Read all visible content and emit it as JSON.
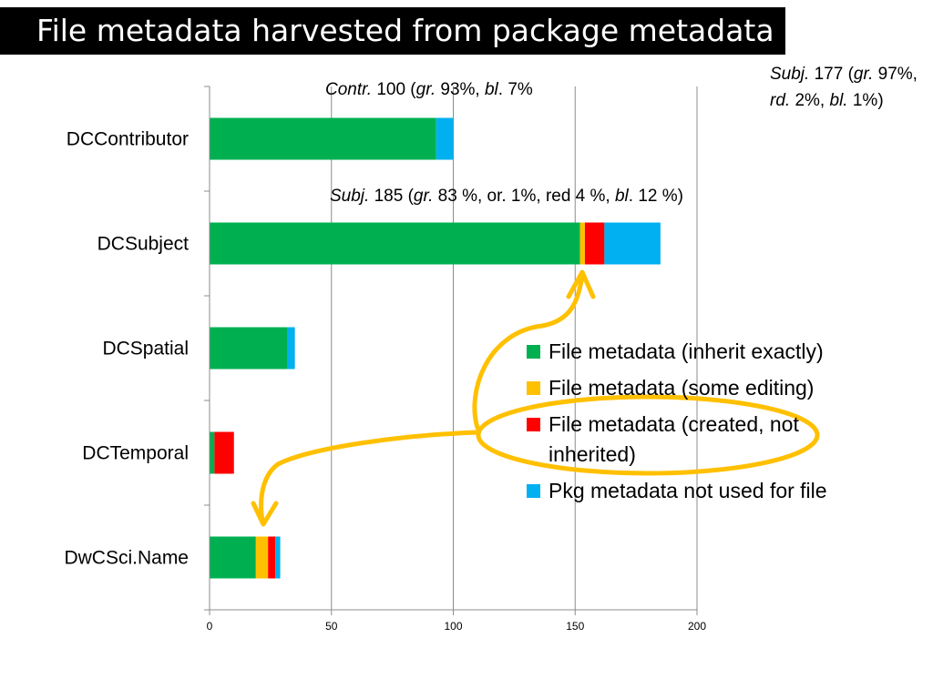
{
  "title": "File metadata harvested from package metadata",
  "chart_data": {
    "type": "bar",
    "orientation": "horizontal",
    "stacked": true,
    "categories": [
      "DCContributor",
      "DCSubject",
      "DCSpatial",
      "DCTemporal",
      "DwCSci.Name"
    ],
    "series": [
      {
        "name": "File metadata (inherit exactly)",
        "color": "#00b050",
        "values": [
          93,
          152,
          32,
          2,
          19
        ]
      },
      {
        "name": "File metadata (some editing)",
        "color": "#ffc000",
        "values": [
          0,
          2,
          0,
          0,
          5
        ]
      },
      {
        "name": "File metadata (created, not inherited)",
        "color": "#ff0000",
        "values": [
          0,
          8,
          0,
          8,
          3
        ]
      },
      {
        "name": "Pkg metadata not used for file",
        "color": "#00b0f0",
        "values": [
          7,
          23,
          3,
          0,
          2
        ]
      }
    ],
    "xlim": [
      0,
      200
    ],
    "xticks": [
      0,
      50,
      100,
      150,
      200
    ],
    "grid": "vertical",
    "legend_position": "right"
  },
  "annotations": {
    "contr": {
      "label": "Contr.",
      "t1": " 100 (",
      "gr": "gr.",
      "t2": " 93%, ",
      "bl": "bl",
      "t3": ". 7%"
    },
    "subj185": {
      "label": "Subj.",
      "t1": " 185 (",
      "gr": "gr.",
      "t2": " 83  %, or. 1%, red  4 %, ",
      "bl": "bl",
      "t3": ". 12 %)"
    },
    "subj177": {
      "label": "Subj.",
      "t1": " 177 (",
      "gr": "gr.",
      "t2": " 97%, ",
      "rd": "rd.",
      "t3": " 2%, ",
      "bl": "bl.",
      "t4": " 1%)"
    }
  },
  "arrow_color": "#ffc000"
}
